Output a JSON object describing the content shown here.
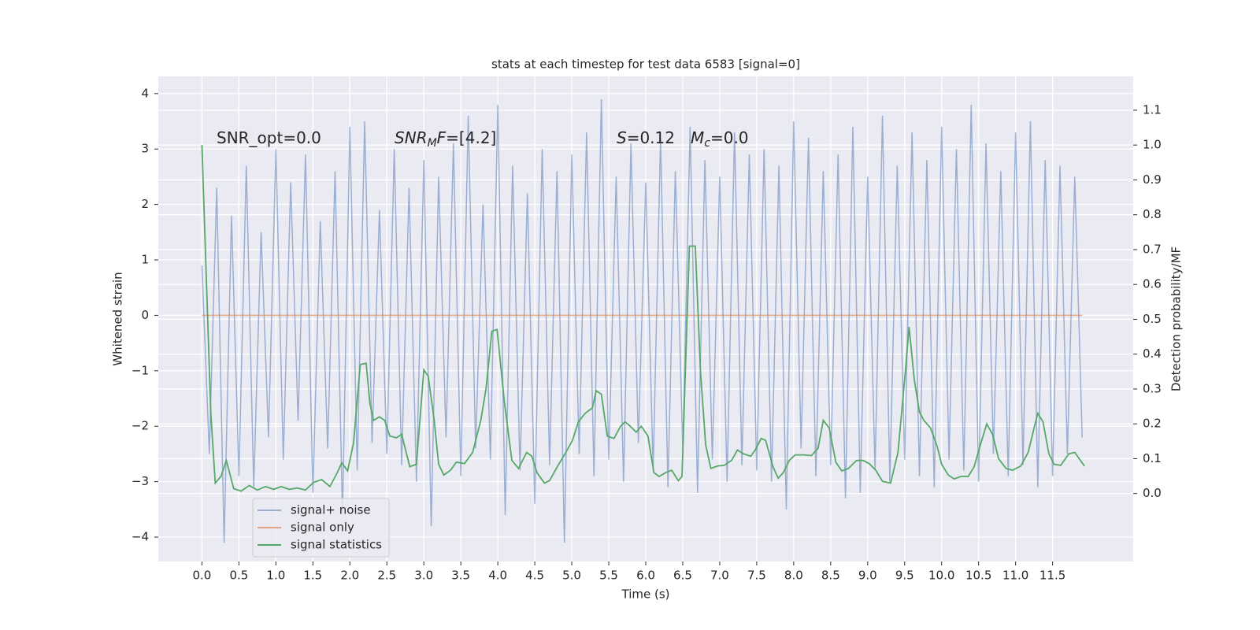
{
  "chart_data": {
    "type": "line",
    "title": "stats at each timestep for test data 6583 [signal=0]",
    "xlabel": "Time (s)",
    "ylabel": "Whitened strain",
    "y2label": "Detection probability/MF",
    "xlim": [
      -0.59,
      12.59
    ],
    "ylim": [
      -4.44,
      4.31
    ],
    "y2lim": [
      -0.195,
      1.197
    ],
    "xticks": [
      {
        "value": 0,
        "label": "0.0"
      },
      0.5,
      {
        "value": 1,
        "label": "1.0"
      },
      1.5,
      {
        "value": 2,
        "label": "2.0"
      },
      2.5,
      {
        "value": 3,
        "label": "3.0"
      },
      3.5,
      {
        "value": 4,
        "label": "4.0"
      },
      4.5,
      {
        "value": 5,
        "label": "5.0"
      },
      5.5,
      {
        "value": 6,
        "label": "6.0"
      },
      6.5,
      {
        "value": 7,
        "label": "7.0"
      },
      7.5,
      {
        "value": 8,
        "label": "8.0"
      },
      8.5,
      {
        "value": 9,
        "label": "9.0"
      },
      9.5,
      {
        "value": 10,
        "label": "10.0"
      },
      10.5,
      {
        "value": 11,
        "label": "11.0"
      },
      11.5
    ],
    "yticks": [
      {
        "value": -4,
        "label": "−4"
      },
      {
        "value": -3,
        "label": "−3"
      },
      {
        "value": -2,
        "label": "−2"
      },
      {
        "value": -1,
        "label": "−1"
      },
      0,
      1,
      2,
      3,
      4
    ],
    "y2ticks": [
      {
        "value": 0,
        "label": "0.0"
      },
      0.1,
      0.2,
      0.3,
      0.4,
      0.5,
      0.6,
      0.7,
      0.8,
      0.9,
      {
        "value": 1,
        "label": "1.0"
      },
      1.1
    ],
    "grid": true,
    "legend": "lower left",
    "annotations": [
      {
        "parts": [
          {
            "text": "SNR_opt=0.0"
          }
        ]
      },
      {
        "parts": [
          {
            "text": "SNR",
            "style": "italic"
          },
          {
            "text": "M",
            "style": "italic",
            "sub": true
          },
          {
            "text": "F",
            "style": "italic"
          },
          {
            "text": "=[4.2]"
          }
        ]
      },
      {
        "parts": [
          {
            "text": "S",
            "style": "italic"
          },
          {
            "text": "=0.12"
          }
        ]
      },
      {
        "parts": [
          {
            "text": "M",
            "style": "italic"
          },
          {
            "text": "c",
            "style": "italic",
            "sub": true
          },
          {
            "text": "=0.0"
          }
        ]
      }
    ],
    "series": [
      {
        "name": "signal+ noise",
        "color": "#4c72b0",
        "opacity": 0.5,
        "x": [
          0.0,
          0.1,
          0.2,
          0.3,
          0.4,
          0.5,
          0.6,
          0.7,
          0.8,
          0.9,
          1.0,
          1.1,
          1.2,
          1.3,
          1.4,
          1.5,
          1.6,
          1.7,
          1.8,
          1.9,
          2.0,
          2.1,
          2.2,
          2.3,
          2.4,
          2.5,
          2.6,
          2.7,
          2.8,
          2.9,
          3.0,
          3.1,
          3.2,
          3.3,
          3.4,
          3.5,
          3.6,
          3.7,
          3.8,
          3.9,
          4.0,
          4.1,
          4.2,
          4.3,
          4.4,
          4.5,
          4.6,
          4.7,
          4.8,
          4.9,
          5.0,
          5.1,
          5.2,
          5.3,
          5.4,
          5.5,
          5.6,
          5.7,
          5.8,
          5.9,
          6.0,
          6.1,
          6.2,
          6.3,
          6.4,
          6.5,
          6.6,
          6.7,
          6.8,
          6.9,
          7.0,
          7.1,
          7.2,
          7.3,
          7.4,
          7.5,
          7.6,
          7.7,
          7.8,
          7.9,
          8.0,
          8.1,
          8.2,
          8.3,
          8.4,
          8.5,
          8.6,
          8.7,
          8.8,
          8.9,
          9.0,
          9.1,
          9.2,
          9.3,
          9.4,
          9.5,
          9.6,
          9.7,
          9.8,
          9.9,
          10.0,
          10.1,
          10.2,
          10.3,
          10.4,
          10.5,
          10.6,
          10.7,
          10.8,
          10.9,
          11.0,
          11.1,
          11.2,
          11.3,
          11.4,
          11.5,
          11.6,
          11.7,
          11.8,
          11.9
        ],
        "values": [
          0.9,
          -2.5,
          2.3,
          -4.1,
          1.8,
          -2.9,
          2.7,
          -3.1,
          1.5,
          -2.2,
          3.0,
          -2.6,
          2.4,
          -1.9,
          2.9,
          -3.2,
          1.7,
          -2.4,
          2.6,
          -3.6,
          3.4,
          -2.8,
          3.5,
          -2.3,
          1.9,
          -2.5,
          3.0,
          -2.7,
          2.3,
          -3.0,
          2.8,
          -3.8,
          2.5,
          -2.2,
          3.1,
          -2.9,
          3.6,
          -2.4,
          2.0,
          -2.6,
          3.8,
          -3.6,
          2.7,
          -2.8,
          2.2,
          -3.4,
          3.0,
          -2.7,
          2.6,
          -4.1,
          2.9,
          -2.5,
          3.3,
          -2.9,
          3.9,
          -2.6,
          2.5,
          -3.0,
          3.1,
          -2.3,
          2.4,
          -2.8,
          3.2,
          -3.1,
          2.6,
          -2.4,
          3.4,
          -3.2,
          2.8,
          -2.6,
          2.5,
          -3.0,
          3.3,
          -2.7,
          2.9,
          -2.8,
          3.0,
          -3.0,
          2.7,
          -3.5,
          3.5,
          -2.4,
          3.2,
          -2.9,
          2.6,
          -2.7,
          2.9,
          -3.3,
          3.4,
          -3.2,
          2.5,
          -2.8,
          3.6,
          -3.0,
          2.7,
          -2.6,
          3.3,
          -2.9,
          2.8,
          -3.1,
          3.4,
          -2.6,
          3.0,
          -2.8,
          3.8,
          -3.0,
          3.1,
          -2.5,
          2.6,
          -2.9,
          3.3,
          -2.7,
          3.5,
          -3.1,
          2.8,
          -2.9,
          2.7,
          -2.5,
          2.5,
          -2.2
        ]
      },
      {
        "name": "signal only",
        "color": "#dd8452",
        "opacity": 0.7,
        "x": [
          0.0,
          11.9
        ],
        "values": [
          0,
          0
        ]
      },
      {
        "name": "signal statistics",
        "color": "#55a868",
        "opacity": 1,
        "axis": "y2",
        "x": [
          0.0,
          0.12,
          0.18,
          0.26,
          0.33,
          0.43,
          0.53,
          0.64,
          0.75,
          0.86,
          0.97,
          1.07,
          1.18,
          1.29,
          1.4,
          1.51,
          1.62,
          1.73,
          1.83,
          1.89,
          1.97,
          2.05,
          2.14,
          2.22,
          2.27,
          2.32,
          2.4,
          2.47,
          2.54,
          2.63,
          2.7,
          2.81,
          2.9,
          3.0,
          3.06,
          3.14,
          3.2,
          3.27,
          3.36,
          3.44,
          3.55,
          3.66,
          3.77,
          3.84,
          3.92,
          3.99,
          4.09,
          4.19,
          4.28,
          4.39,
          4.46,
          4.53,
          4.63,
          4.7,
          4.81,
          4.92,
          5.01,
          5.09,
          5.18,
          5.28,
          5.33,
          5.4,
          5.48,
          5.57,
          5.66,
          5.72,
          5.79,
          5.87,
          5.94,
          6.03,
          6.11,
          6.18,
          6.27,
          6.35,
          6.44,
          6.49,
          6.59,
          6.67,
          6.74,
          6.81,
          6.88,
          6.97,
          7.06,
          7.16,
          7.24,
          7.32,
          7.42,
          7.48,
          7.56,
          7.62,
          7.72,
          7.79,
          7.86,
          7.94,
          8.02,
          8.13,
          8.24,
          8.33,
          8.4,
          8.48,
          8.57,
          8.65,
          8.74,
          8.85,
          8.94,
          9.02,
          9.11,
          9.2,
          9.31,
          9.41,
          9.49,
          9.56,
          9.63,
          9.7,
          9.76,
          9.85,
          9.94,
          10.0,
          10.09,
          10.17,
          10.26,
          10.36,
          10.44,
          10.52,
          10.61,
          10.69,
          10.77,
          10.87,
          10.96,
          11.07,
          11.17,
          11.25,
          11.3,
          11.37,
          11.45,
          11.52,
          11.61,
          11.72,
          11.8,
          11.93
        ],
        "values": [
          1.0,
          0.23,
          0.03,
          0.05,
          0.095,
          0.014,
          0.007,
          0.023,
          0.01,
          0.02,
          0.012,
          0.02,
          0.012,
          0.016,
          0.01,
          0.032,
          0.04,
          0.02,
          0.06,
          0.088,
          0.065,
          0.146,
          0.37,
          0.374,
          0.26,
          0.21,
          0.22,
          0.21,
          0.165,
          0.16,
          0.17,
          0.077,
          0.084,
          0.355,
          0.336,
          0.21,
          0.084,
          0.053,
          0.067,
          0.09,
          0.086,
          0.118,
          0.21,
          0.3,
          0.466,
          0.471,
          0.26,
          0.095,
          0.072,
          0.118,
          0.107,
          0.06,
          0.03,
          0.037,
          0.079,
          0.118,
          0.153,
          0.206,
          0.23,
          0.246,
          0.295,
          0.285,
          0.165,
          0.158,
          0.193,
          0.206,
          0.193,
          0.176,
          0.193,
          0.165,
          0.06,
          0.049,
          0.06,
          0.067,
          0.037,
          0.049,
          0.71,
          0.71,
          0.35,
          0.14,
          0.072,
          0.079,
          0.081,
          0.095,
          0.125,
          0.114,
          0.107,
          0.125,
          0.158,
          0.153,
          0.077,
          0.044,
          0.06,
          0.095,
          0.111,
          0.111,
          0.109,
          0.13,
          0.21,
          0.188,
          0.09,
          0.065,
          0.072,
          0.095,
          0.095,
          0.086,
          0.067,
          0.035,
          0.03,
          0.118,
          0.304,
          0.478,
          0.327,
          0.234,
          0.21,
          0.188,
          0.135,
          0.084,
          0.053,
          0.042,
          0.049,
          0.049,
          0.077,
          0.137,
          0.2,
          0.169,
          0.1,
          0.072,
          0.067,
          0.079,
          0.118,
          0.188,
          0.23,
          0.206,
          0.114,
          0.084,
          0.081,
          0.114,
          0.118,
          0.079
        ]
      }
    ]
  }
}
